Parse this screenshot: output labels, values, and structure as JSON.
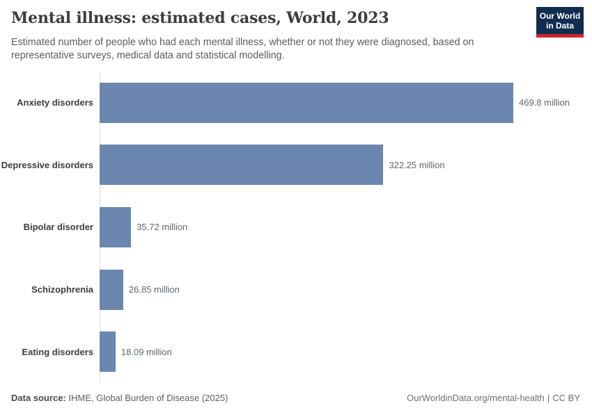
{
  "header": {
    "title": "Mental illness: estimated cases, World, 2023",
    "subtitle": "Estimated number of people who had each mental illness, whether or not they were diagnosed, based on representative surveys, medical data and statistical modelling.",
    "logo_line1": "Our World",
    "logo_line2": "in Data"
  },
  "chart_data": {
    "type": "bar",
    "orientation": "horizontal",
    "title": "Mental illness: estimated cases, World, 2023",
    "unit": "million",
    "xlim": [
      0,
      469.8
    ],
    "grid": false,
    "legend": "none",
    "bar_color": "#6b86af",
    "categories": [
      "Anxiety disorders",
      "Depressive disorders",
      "Bipolar disorder",
      "Schizophrenia",
      "Eating disorders"
    ],
    "values": [
      469.8,
      322.25,
      35.72,
      26.85,
      18.09
    ],
    "value_labels": [
      "469.8 million",
      "322.25 million",
      "35.72 million",
      "26.85 million",
      "18.09 million"
    ]
  },
  "footer": {
    "datasource_label": "Data source:",
    "datasource_value": "IHME, Global Burden of Disease (2025)",
    "link_text": "OurWorldinData.org/mental-health",
    "divider": "|",
    "license": "CC BY"
  },
  "colors": {
    "bar": "#6b86af",
    "title_text": "#3d3d3d",
    "subtitle_text": "#5b5b5b",
    "value_text": "#60666c",
    "axis_line": "#dcdcdc",
    "logo_bg": "#102d50",
    "logo_red": "#cf2430"
  }
}
